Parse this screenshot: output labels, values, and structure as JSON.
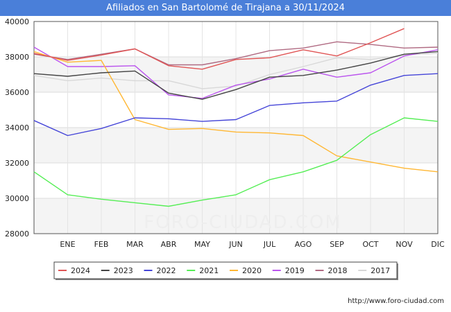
{
  "header": {
    "title": "Afiliados en San Bartolomé de Tirajana a 30/11/2024"
  },
  "footer": {
    "url": "http://www.foro-ciudad.com"
  },
  "chart_data": {
    "type": "line",
    "title": "Afiliados en San Bartolomé de Tirajana a 30/11/2024",
    "watermark": "FORO-CIUDAD.COM",
    "x": [
      "",
      "ENE",
      "FEB",
      "MAR",
      "ABR",
      "MAY",
      "JUN",
      "JUL",
      "AGO",
      "SEP",
      "OCT",
      "NOV",
      "DIC"
    ],
    "ylim": [
      28000,
      40000
    ],
    "yticks": [
      28000,
      30000,
      32000,
      34000,
      36000,
      38000,
      40000
    ],
    "ytick_labels": [
      "28000",
      "30000",
      "32000",
      "34000",
      "36000",
      "38000",
      "40000"
    ],
    "grid": true,
    "legend_position": "bottom",
    "series": [
      {
        "name": "2024",
        "color": "#e05555",
        "values": [
          38200,
          37800,
          38100,
          38450,
          37500,
          37300,
          37850,
          37950,
          38400,
          38050,
          38800,
          39600,
          null
        ]
      },
      {
        "name": "2023",
        "color": "#444444",
        "values": [
          37050,
          36900,
          37100,
          37200,
          35950,
          35600,
          36150,
          36850,
          36950,
          37250,
          37650,
          38150,
          38300
        ]
      },
      {
        "name": "2022",
        "color": "#4545d8",
        "values": [
          34400,
          33550,
          33950,
          34550,
          34500,
          34350,
          34450,
          35250,
          35400,
          35500,
          36400,
          36950,
          37050
        ]
      },
      {
        "name": "2021",
        "color": "#55ee55",
        "values": [
          31500,
          30200,
          29950,
          29750,
          29550,
          29900,
          30200,
          31050,
          31500,
          32150,
          33600,
          34550,
          34350
        ]
      },
      {
        "name": "2020",
        "color": "#ffb733",
        "values": [
          38300,
          37700,
          37800,
          34450,
          33900,
          33950,
          33750,
          33700,
          33550,
          32400,
          32050,
          31700,
          31500
        ]
      },
      {
        "name": "2019",
        "color": "#bb55ee",
        "values": [
          38550,
          37450,
          37450,
          37500,
          35850,
          35650,
          36400,
          36750,
          37300,
          36850,
          37100,
          38050,
          38400
        ]
      },
      {
        "name": "2018",
        "color": "#b06a82",
        "values": [
          38150,
          37850,
          38150,
          38450,
          37550,
          37550,
          37900,
          38350,
          38500,
          38850,
          38700,
          38500,
          38550
        ]
      },
      {
        "name": "2017",
        "color": "#d8d8d8",
        "values": [
          36950,
          36650,
          36800,
          36650,
          36650,
          36200,
          36350,
          37000,
          37450,
          37950,
          37850,
          38100,
          38200
        ]
      }
    ]
  }
}
